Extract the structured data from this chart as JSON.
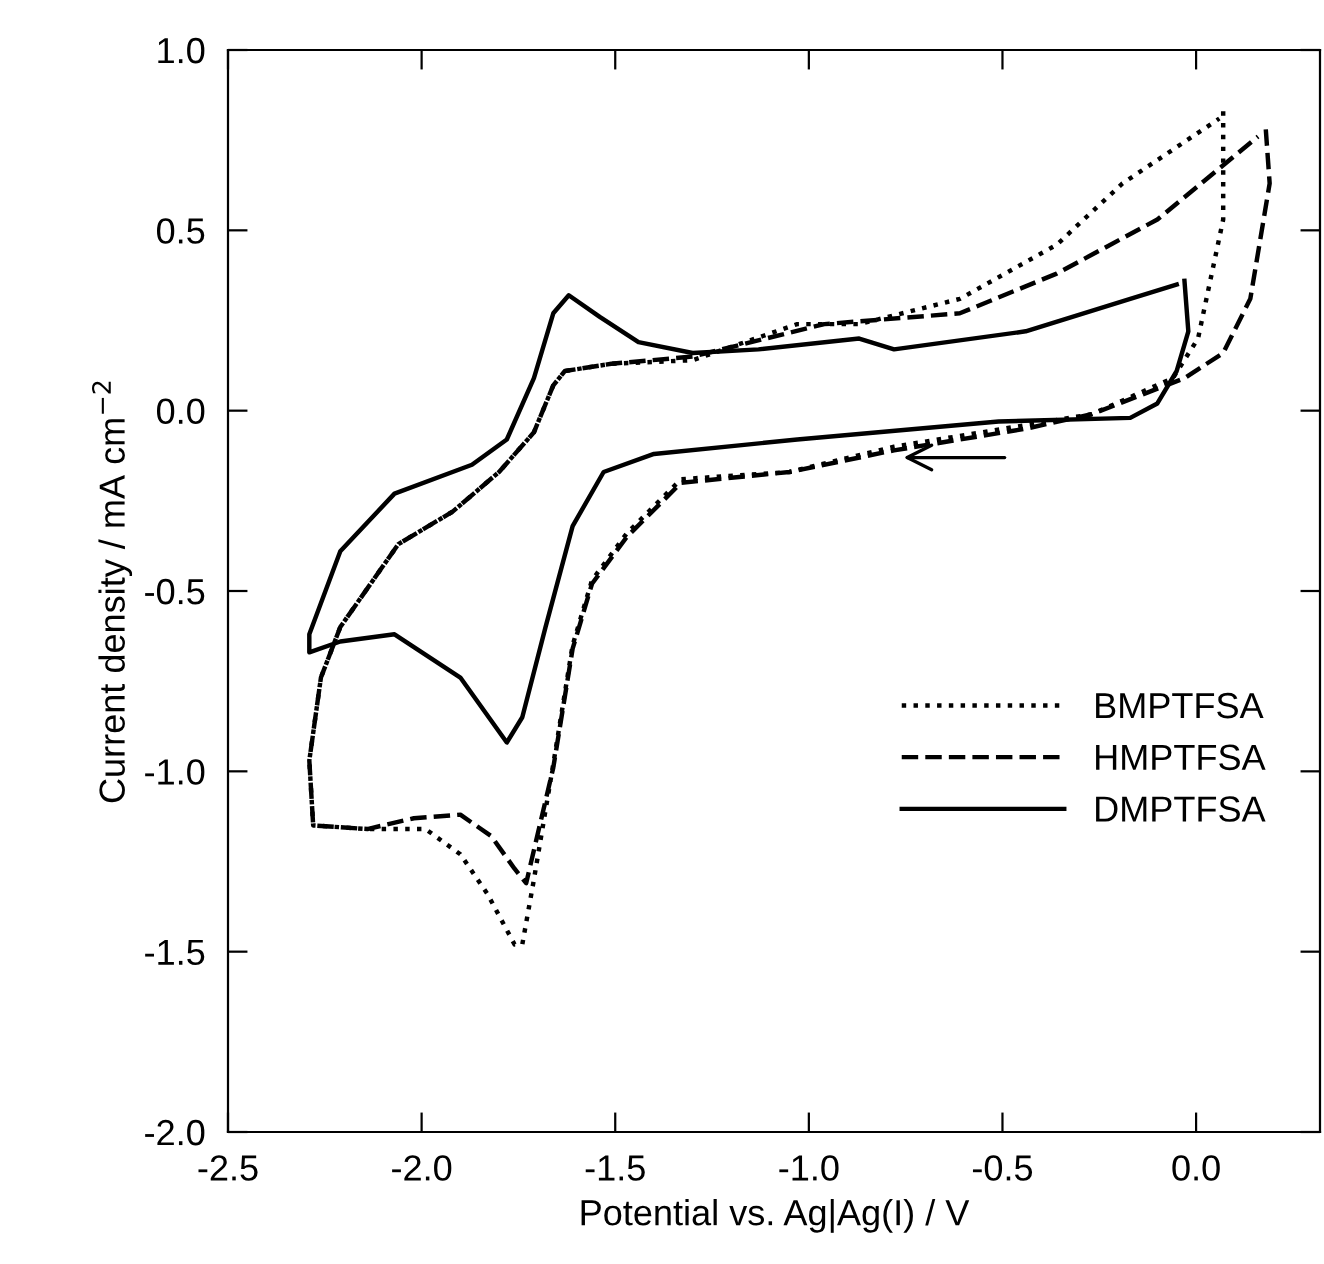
{
  "chart_data": {
    "type": "line",
    "xlabel": "Potential vs. Ag|Ag(I) / V",
    "ylabel": "Current density / mA cm$^{−2}$",
    "xlim": [
      -2.5,
      0.32
    ],
    "ylim": [
      -2.0,
      1.0
    ],
    "xticks": [
      -2.5,
      {
        "value": -2,
        "label": "-2.0"
      },
      -1.5,
      {
        "value": -1,
        "label": "-1.0"
      },
      -0.5,
      {
        "value": 0,
        "label": "0.0"
      }
    ],
    "yticks": [
      {
        "value": -2,
        "label": "-2.0"
      },
      -1.5,
      {
        "value": -1,
        "label": "-1.0"
      },
      -0.5,
      {
        "value": 0,
        "label": "0.0"
      },
      0.5,
      {
        "value": 1,
        "label": "1.0"
      }
    ],
    "grid": false,
    "legend": "bottom right",
    "marker": "none",
    "series": [
      {
        "name": "BMPTFSA",
        "color": "#000000",
        "line_style": "dotted",
        "x": [
          0.07,
          0.07,
          0.005,
          -0.06,
          -0.27,
          -0.44,
          -0.78,
          -1.05,
          -1.33,
          -1.47,
          -1.56,
          -1.61,
          -1.66,
          -1.71,
          -1.74,
          -1.76,
          -1.83,
          -1.9,
          -1.99,
          -2.14,
          -2.28,
          -2.29,
          -2.26,
          -2.21,
          -2.06,
          -1.92,
          -1.8,
          -1.71,
          -1.66,
          -1.63,
          -1.51,
          -1.3,
          -1.03,
          -0.87,
          -0.61,
          -0.36,
          -0.19,
          0.06
        ],
        "values": [
          0.83,
          0.53,
          0.2,
          0.09,
          -0.01,
          -0.04,
          -0.1,
          -0.17,
          -0.19,
          -0.34,
          -0.47,
          -0.65,
          -0.98,
          -1.3,
          -1.48,
          -1.48,
          -1.34,
          -1.23,
          -1.16,
          -1.16,
          -1.15,
          -0.97,
          -0.74,
          -0.6,
          -0.37,
          -0.28,
          -0.17,
          -0.06,
          0.07,
          0.11,
          0.13,
          0.14,
          0.24,
          0.24,
          0.31,
          0.46,
          0.63,
          0.81
        ]
      },
      {
        "name": "HMPTFSA",
        "color": "#000000",
        "line_style": "dashed",
        "x": [
          0.18,
          0.19,
          0.14,
          0.07,
          -0.03,
          -0.27,
          -0.44,
          -0.78,
          -1.05,
          -1.33,
          -1.47,
          -1.56,
          -1.61,
          -1.66,
          -1.73,
          -1.76,
          -1.82,
          -1.9,
          -2.02,
          -2.14,
          -2.28,
          -2.29,
          -2.26,
          -2.21,
          -2.06,
          -1.92,
          -1.8,
          -1.71,
          -1.66,
          -1.63,
          -1.51,
          -1.3,
          -0.96,
          -0.61,
          -0.36,
          -0.1,
          0.16
        ],
        "values": [
          0.78,
          0.63,
          0.31,
          0.16,
          0.09,
          -0.01,
          -0.05,
          -0.11,
          -0.17,
          -0.2,
          -0.35,
          -0.48,
          -0.66,
          -0.99,
          -1.31,
          -1.27,
          -1.18,
          -1.12,
          -1.13,
          -1.16,
          -1.15,
          -0.97,
          -0.74,
          -0.6,
          -0.37,
          -0.28,
          -0.17,
          -0.06,
          0.07,
          0.11,
          0.13,
          0.15,
          0.24,
          0.27,
          0.38,
          0.53,
          0.76
        ]
      },
      {
        "name": "DMPTFSA",
        "color": "#000000",
        "line_style": "solid",
        "x": [
          -0.03,
          -0.02,
          -0.05,
          -0.1,
          -0.17,
          -0.51,
          -1.03,
          -1.4,
          -1.53,
          -1.61,
          -1.68,
          -1.74,
          -1.78,
          -1.9,
          -2.07,
          -2.21,
          -2.29,
          -2.29,
          -2.21,
          -2.07,
          -1.87,
          -1.78,
          -1.71,
          -1.66,
          -1.62,
          -1.54,
          -1.44,
          -1.3,
          -1.13,
          -0.87,
          -0.78,
          -0.44,
          -0.17,
          -0.05
        ],
        "values": [
          0.36,
          0.22,
          0.11,
          0.02,
          -0.02,
          -0.03,
          -0.08,
          -0.12,
          -0.17,
          -0.32,
          -0.6,
          -0.85,
          -0.92,
          -0.74,
          -0.62,
          -0.64,
          -0.67,
          -0.62,
          -0.39,
          -0.23,
          -0.15,
          -0.08,
          0.09,
          0.27,
          0.32,
          0.26,
          0.19,
          0.16,
          0.17,
          0.2,
          0.17,
          0.22,
          0.31,
          0.35
        ]
      }
    ]
  }
}
